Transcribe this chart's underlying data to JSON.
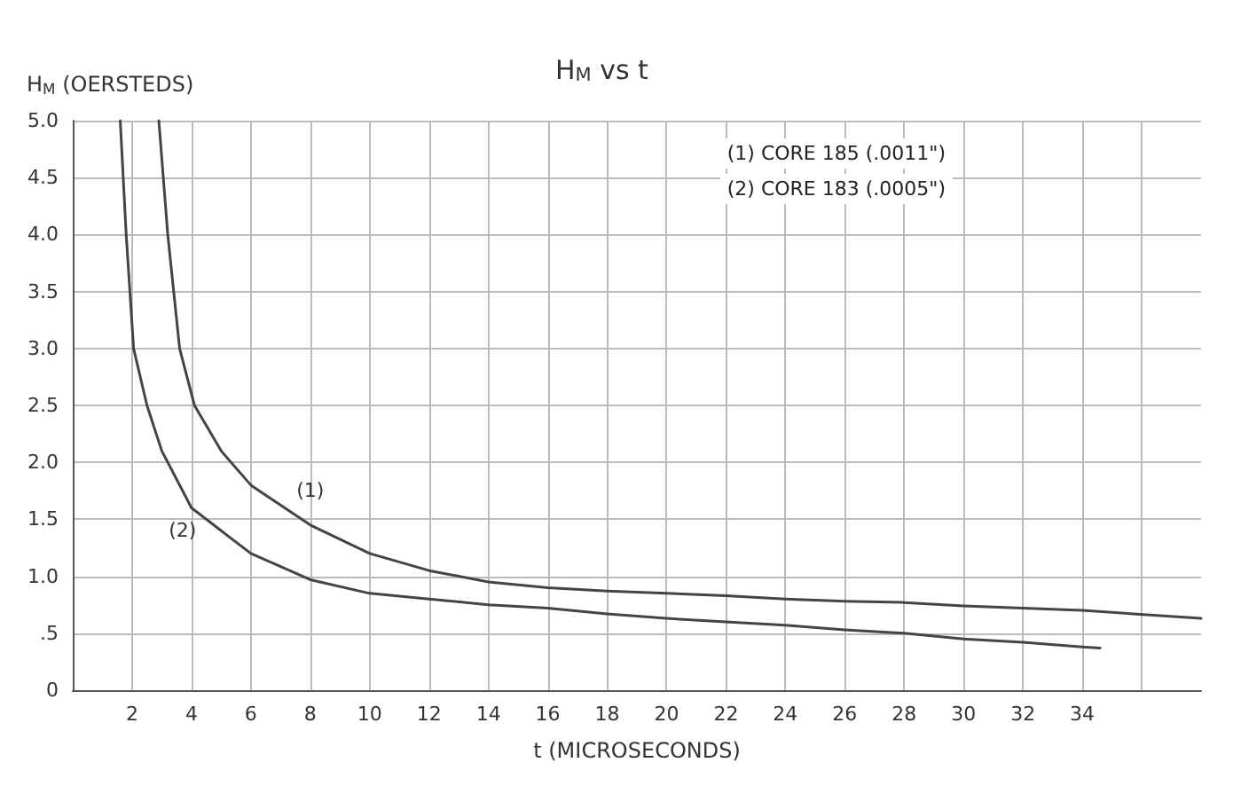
{
  "chart_data": {
    "type": "line",
    "title": "H$_{M}$ vs t",
    "xlabel": "t (MICROSECONDS)",
    "ylabel": "H$_{M}$ (OERSTEDS)",
    "annotations": [
      "(1) CORE 185 (.0011\")",
      "(2) CORE 183 (.0005\")"
    ],
    "xlim": [
      0,
      38
    ],
    "xticks": [
      2,
      4,
      6,
      8,
      10,
      12,
      14,
      16,
      18,
      20,
      22,
      24,
      26,
      28,
      30,
      32,
      34,
      {
        "value": 36,
        "label": null
      }
    ],
    "ylim": [
      0,
      5
    ],
    "yticks": [
      0,
      {
        "value": 0.5,
        "label": ".5"
      },
      {
        "value": 1,
        "label": "1.0"
      },
      {
        "value": 1.5,
        "label": "1.5"
      },
      {
        "value": 2,
        "label": "2.0"
      },
      {
        "value": 2.5,
        "label": "2.5"
      },
      {
        "value": 3,
        "label": "3.0"
      },
      {
        "value": 3.5,
        "label": "3.5"
      },
      {
        "value": 4,
        "label": "4.0"
      },
      {
        "value": 4.5,
        "label": "4.5"
      },
      {
        "value": 5,
        "label": "5.0"
      }
    ],
    "grid": true,
    "marker": "none",
    "line_style": "solid",
    "series": [
      {
        "name": "(1)",
        "color": "#444444",
        "x": [
          2.9,
          3.2,
          3.6,
          4.1,
          5,
          6,
          8,
          10,
          12,
          14,
          16,
          18,
          20,
          22,
          24,
          26,
          28,
          30,
          32,
          34,
          38
        ],
        "values": [
          5,
          4,
          3,
          2.5,
          2.1,
          1.8,
          1.45,
          1.2,
          1.05,
          0.95,
          0.9,
          0.87,
          0.85,
          0.83,
          0.8,
          0.78,
          0.77,
          0.74,
          0.72,
          0.7,
          0.63
        ]
      },
      {
        "name": "(2)",
        "color": "#444444",
        "x": [
          1.6,
          1.8,
          2.05,
          2.5,
          3,
          4,
          5,
          6,
          8,
          10,
          12,
          14,
          16,
          18,
          20,
          22,
          24,
          26,
          28,
          30,
          32,
          34,
          34.6
        ],
        "values": [
          5,
          4,
          3,
          2.5,
          2.1,
          1.6,
          1.4,
          1.2,
          0.97,
          0.85,
          0.8,
          0.75,
          0.72,
          0.67,
          0.63,
          0.6,
          0.57,
          0.53,
          0.5,
          0.45,
          0.42,
          0.38,
          0.37
        ]
      }
    ]
  }
}
